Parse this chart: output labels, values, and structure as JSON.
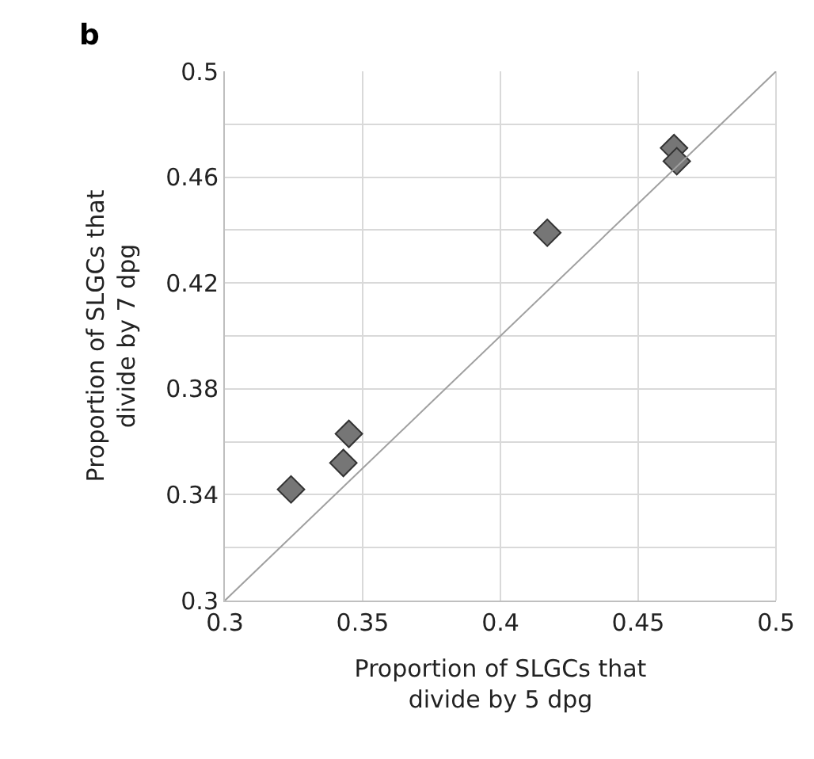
{
  "chart_data": {
    "type": "scatter",
    "xlabel": "Proportion of SLGCs that\ndivide by 5 dpg",
    "ylabel": "Proportion of SLGCs that\ndivide by 7 dpg",
    "annotations": [
      "b"
    ],
    "series": [
      {
        "color": "#767676",
        "marker": "diamond",
        "x": [
          0.324,
          0.343,
          0.345,
          0.417,
          0.463,
          0.464
        ],
        "values": [
          0.342,
          0.352,
          0.363,
          0.439,
          0.471,
          0.466
        ]
      },
      {
        "type": "line",
        "color": "#a0a0a0",
        "marker": "none",
        "line_style": "solid",
        "x": [
          0.3,
          0.5
        ],
        "values": [
          0.3,
          0.5
        ]
      }
    ],
    "xlim": [
      0.3,
      0.5
    ],
    "xticks": [
      0.3,
      0.35,
      0.4,
      0.45,
      0.5
    ],
    "ylim": [
      0.3,
      0.5
    ],
    "yticks": [
      0.3,
      {
        "value": 0.32,
        "label": null
      },
      0.34,
      {
        "value": 0.36,
        "label": null
      },
      0.38,
      {
        "value": 0.4,
        "label": null
      },
      0.42,
      {
        "value": 0.44,
        "label": null
      },
      0.46,
      {
        "value": 0.48,
        "label": null
      },
      0.5
    ],
    "grid": true
  }
}
